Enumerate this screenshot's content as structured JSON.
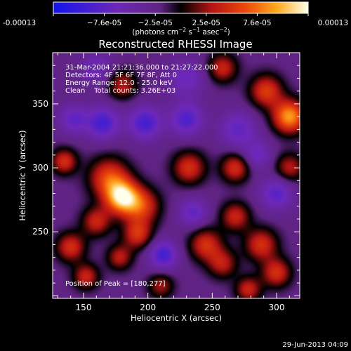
{
  "chart_data": {
    "type": "heatmap",
    "title": "Reconstructed RHESSI Image",
    "xlabel": "Heliocentric X (arcsec)",
    "ylabel": "Heliocentric Y (arcsec)",
    "xlim": [
      126,
      318
    ],
    "ylim": [
      198,
      390
    ],
    "x_ticks": [
      150,
      200,
      250,
      300
    ],
    "y_ticks": [
      250,
      300,
      350
    ],
    "colorbar": {
      "min": -0.00013,
      "max": 0.00013,
      "tick_labels": [
        "-0.00013",
        "−7.6e-05",
        "−2.5e-05",
        "2.5e-05",
        "7.6e-05",
        "0.00013"
      ],
      "units_prefix": "(photons cm",
      "units_exp1": "−2",
      "units_mid": " s",
      "units_exp2": "−1",
      "units_mid2": " asec",
      "units_exp3": "−2",
      "units_suffix": ")"
    },
    "info_lines": [
      "31-Mar-2004 21:21:36.000 to 21:27:22.000",
      "Detectors: 4F 5F 6F 7F 8F, Att 0",
      "Energy Range: 12.0 - 25.0 keV",
      "Clean    Total counts: 3.26E+03"
    ],
    "peak_label": "Position of Peak = [180,277]",
    "peak": [
      180,
      277
    ],
    "sources": [
      {
        "x": 180,
        "y": 277,
        "amp": 1.0,
        "sigma": 9
      },
      {
        "x": 170,
        "y": 292,
        "amp": 0.65,
        "sigma": 11
      },
      {
        "x": 195,
        "y": 270,
        "amp": 0.6,
        "sigma": 10
      },
      {
        "x": 160,
        "y": 258,
        "amp": 0.5,
        "sigma": 8
      },
      {
        "x": 192,
        "y": 248,
        "amp": 0.55,
        "sigma": 8
      },
      {
        "x": 140,
        "y": 238,
        "amp": 0.55,
        "sigma": 8
      },
      {
        "x": 152,
        "y": 215,
        "amp": 0.5,
        "sigma": 7
      },
      {
        "x": 178,
        "y": 230,
        "amp": 0.45,
        "sigma": 7
      },
      {
        "x": 232,
        "y": 300,
        "amp": 0.55,
        "sigma": 9
      },
      {
        "x": 245,
        "y": 240,
        "amp": 0.55,
        "sigma": 9
      },
      {
        "x": 268,
        "y": 262,
        "amp": 0.5,
        "sigma": 8
      },
      {
        "x": 258,
        "y": 225,
        "amp": 0.45,
        "sigma": 8
      },
      {
        "x": 288,
        "y": 240,
        "amp": 0.55,
        "sigma": 9
      },
      {
        "x": 300,
        "y": 218,
        "amp": 0.55,
        "sigma": 8
      },
      {
        "x": 278,
        "y": 205,
        "amp": 0.5,
        "sigma": 7
      },
      {
        "x": 268,
        "y": 300,
        "amp": 0.55,
        "sigma": 8
      },
      {
        "x": 310,
        "y": 340,
        "amp": 0.9,
        "sigma": 9
      },
      {
        "x": 292,
        "y": 360,
        "amp": 0.6,
        "sigma": 9
      },
      {
        "x": 258,
        "y": 378,
        "amp": 0.5,
        "sigma": 8
      },
      {
        "x": 180,
        "y": 365,
        "amp": 0.45,
        "sigma": 8
      },
      {
        "x": 135,
        "y": 305,
        "amp": 0.55,
        "sigma": 7
      },
      {
        "x": 310,
        "y": 300,
        "amp": 0.45,
        "sigma": 8
      },
      {
        "x": 210,
        "y": 208,
        "amp": 0.4,
        "sigma": 7
      },
      {
        "x": 165,
        "y": 335,
        "amp": -0.55,
        "sigma": 9
      },
      {
        "x": 198,
        "y": 335,
        "amp": -0.55,
        "sigma": 9
      },
      {
        "x": 230,
        "y": 338,
        "amp": -0.5,
        "sigma": 9
      },
      {
        "x": 142,
        "y": 338,
        "amp": -0.4,
        "sigma": 8
      },
      {
        "x": 212,
        "y": 232,
        "amp": -0.55,
        "sigma": 8
      },
      {
        "x": 235,
        "y": 265,
        "amp": -0.4,
        "sigma": 8
      },
      {
        "x": 270,
        "y": 330,
        "amp": -0.4,
        "sigma": 10
      },
      {
        "x": 300,
        "y": 280,
        "amp": -0.45,
        "sigma": 9
      },
      {
        "x": 230,
        "y": 370,
        "amp": -0.35,
        "sigma": 10
      },
      {
        "x": 160,
        "y": 378,
        "amp": -0.3,
        "sigma": 9
      },
      {
        "x": 285,
        "y": 310,
        "amp": -0.35,
        "sigma": 8
      }
    ]
  },
  "footer": {
    "date": "29-Jun-2013 04:09"
  }
}
